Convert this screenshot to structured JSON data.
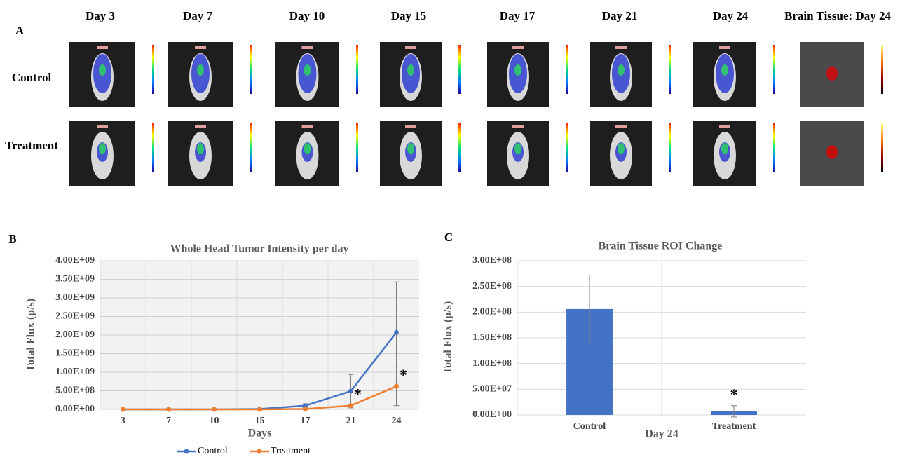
{
  "panel_a": {
    "label": "A",
    "columns": [
      "Day 3",
      "Day 7",
      "Day 10",
      "Day 15",
      "Day 17",
      "Day 21",
      "Day 24",
      "Brain Tissue: Day 24"
    ],
    "rows": [
      "Control",
      "Treatment"
    ]
  },
  "chart_data": [
    {
      "type": "line",
      "panel": "B",
      "title": "Whole Head Tumor Intensity per day",
      "xlabel": "Days",
      "ylabel": "Total Flux (p/s)",
      "categories": [
        "3",
        "7",
        "10",
        "15",
        "17",
        "21",
        "24"
      ],
      "series": [
        {
          "name": "Control",
          "color": "#4472c4",
          "values": [
            0,
            0,
            0,
            10000000,
            100000000,
            490000000,
            2070000000
          ],
          "errors": [
            0,
            0,
            0,
            0,
            50000000,
            450000000,
            1360000000
          ]
        },
        {
          "name": "Treatment",
          "color": "#ed7d31",
          "values": [
            0,
            0,
            0,
            0,
            10000000,
            100000000,
            620000000
          ],
          "errors": [
            0,
            0,
            0,
            0,
            0,
            30000000,
            520000000
          ]
        }
      ],
      "ylim": [
        0,
        4000000000
      ],
      "yticks": [
        {
          "value": 0,
          "label": "0.00E+00"
        },
        {
          "value": 500000000,
          "label": "5.00E+08"
        },
        {
          "value": 1000000000,
          "label": "1.00E+09"
        },
        {
          "value": 1500000000,
          "label": "1.50E+09"
        },
        {
          "value": 2000000000,
          "label": "2.00E+09"
        },
        {
          "value": 2500000000,
          "label": "2.50E+09"
        },
        {
          "value": 3000000000,
          "label": "3.00E+09"
        },
        {
          "value": 3500000000,
          "label": "3.50E+09"
        },
        {
          "value": 4000000000,
          "label": "4.00E+09"
        }
      ],
      "grid": true,
      "legend": "bottom",
      "annotations": [
        {
          "text": "*",
          "category": "21",
          "series": "Treatment"
        },
        {
          "text": "*",
          "category": "24",
          "series": "Treatment"
        }
      ]
    },
    {
      "type": "bar",
      "panel": "C",
      "title": "Brain Tissue ROI Change",
      "xlabel": "Day 24",
      "ylabel": "Total Flux (p/s)",
      "categories": [
        "Control",
        "Treatment"
      ],
      "values": [
        206000000,
        7000000
      ],
      "errors": [
        66000000,
        11000000
      ],
      "color": "#4472c4",
      "ylim": [
        0,
        300000000
      ],
      "yticks": [
        {
          "value": 0,
          "label": "0.00E+00"
        },
        {
          "value": 50000000,
          "label": "5.00E+07"
        },
        {
          "value": 100000000,
          "label": "1.00E+08"
        },
        {
          "value": 150000000,
          "label": "1.50E+08"
        },
        {
          "value": 200000000,
          "label": "2.00E+08"
        },
        {
          "value": 250000000,
          "label": "2.50E+08"
        },
        {
          "value": 300000000,
          "label": "3.00E+08"
        }
      ],
      "grid": true,
      "annotations": [
        {
          "text": "*",
          "category": "Treatment"
        }
      ]
    }
  ]
}
